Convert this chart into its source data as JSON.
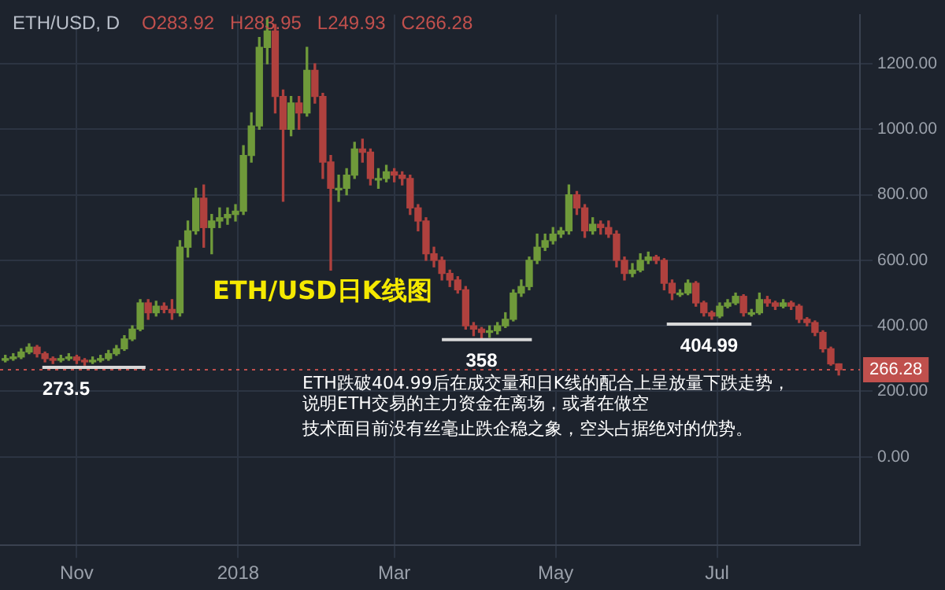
{
  "chart_data": {
    "type": "candlestick",
    "title": "ETH/USD日K线图",
    "subtitle": "ETH/USD, D",
    "annotations": [
      "O283.92",
      "H283.95",
      "L249.93",
      "C266.28",
      "ETH跌破404.99后在成交量和日K线的配合上呈放量下跌走势，",
      "说明ETH交易的主力资金在离场，或者在做空",
      "技术面目前没有丝毫止跌企稳之象，空头占据绝对的优势。",
      {
        "text": "273.5",
        "x": "2017-10-28",
        "y": 273.5
      },
      {
        "text": "358",
        "x": "2018-04-03",
        "y": 358
      },
      {
        "text": "404.99",
        "x": "2018-06-28",
        "y": 404.99
      }
    ],
    "x": [
      "2017-10-05",
      "2017-10-08",
      "2017-10-11",
      "2017-10-14",
      "2017-10-17",
      "2017-10-20",
      "2017-10-23",
      "2017-10-26",
      "2017-10-29",
      "2017-11-01",
      "2017-11-04",
      "2017-11-07",
      "2017-11-10",
      "2017-11-13",
      "2017-11-16",
      "2017-11-19",
      "2017-11-22",
      "2017-11-25",
      "2017-11-28",
      "2017-12-01",
      "2017-12-04",
      "2017-12-07",
      "2017-12-10",
      "2017-12-13",
      "2017-12-16",
      "2017-12-19",
      "2017-12-22",
      "2017-12-25",
      "2017-12-28",
      "2017-12-31",
      "2018-01-03",
      "2018-01-06",
      "2018-01-09",
      "2018-01-12",
      "2018-01-15",
      "2018-01-18",
      "2018-01-21",
      "2018-01-24",
      "2018-01-27",
      "2018-01-30",
      "2018-02-02",
      "2018-02-05",
      "2018-02-08",
      "2018-02-11",
      "2018-02-14",
      "2018-02-17",
      "2018-02-20",
      "2018-02-23",
      "2018-02-26",
      "2018-03-01",
      "2018-03-04",
      "2018-03-07",
      "2018-03-10",
      "2018-03-13",
      "2018-03-16",
      "2018-03-19",
      "2018-03-22",
      "2018-03-25",
      "2018-03-28",
      "2018-03-31",
      "2018-04-03",
      "2018-04-06",
      "2018-04-09",
      "2018-04-12",
      "2018-04-15",
      "2018-04-18",
      "2018-04-21",
      "2018-04-24",
      "2018-04-27",
      "2018-04-30",
      "2018-05-03",
      "2018-05-06",
      "2018-05-09",
      "2018-05-12",
      "2018-05-15",
      "2018-05-18",
      "2018-05-21",
      "2018-05-24",
      "2018-05-27",
      "2018-05-30",
      "2018-06-02",
      "2018-06-05",
      "2018-06-08",
      "2018-06-11",
      "2018-06-14",
      "2018-06-17",
      "2018-06-20",
      "2018-06-23",
      "2018-06-26",
      "2018-06-29",
      "2018-07-02",
      "2018-07-05",
      "2018-07-08",
      "2018-07-11",
      "2018-07-14",
      "2018-07-17",
      "2018-07-20",
      "2018-07-23",
      "2018-07-26",
      "2018-07-29",
      "2018-08-01",
      "2018-08-04",
      "2018-08-07",
      "2018-08-10",
      "2018-08-13",
      "2018-08-16"
    ],
    "ohlc": [
      [
        295,
        310,
        290,
        300
      ],
      [
        300,
        315,
        295,
        305
      ],
      [
        305,
        330,
        300,
        320
      ],
      [
        320,
        345,
        315,
        335
      ],
      [
        335,
        340,
        305,
        315
      ],
      [
        315,
        320,
        290,
        300
      ],
      [
        300,
        305,
        285,
        295
      ],
      [
        295,
        310,
        290,
        300
      ],
      [
        300,
        315,
        295,
        305
      ],
      [
        305,
        310,
        285,
        295
      ],
      [
        295,
        300,
        280,
        290
      ],
      [
        290,
        305,
        285,
        295
      ],
      [
        295,
        310,
        290,
        300
      ],
      [
        300,
        325,
        295,
        315
      ],
      [
        315,
        340,
        310,
        330
      ],
      [
        330,
        370,
        325,
        360
      ],
      [
        360,
        400,
        355,
        390
      ],
      [
        390,
        480,
        385,
        470
      ],
      [
        470,
        480,
        420,
        440
      ],
      [
        440,
        475,
        430,
        460
      ],
      [
        460,
        470,
        440,
        450
      ],
      [
        450,
        480,
        420,
        440
      ],
      [
        440,
        660,
        430,
        640
      ],
      [
        640,
        720,
        610,
        690
      ],
      [
        690,
        820,
        680,
        790
      ],
      [
        790,
        830,
        640,
        700
      ],
      [
        700,
        740,
        620,
        720
      ],
      [
        720,
        760,
        700,
        730
      ],
      [
        730,
        760,
        710,
        740
      ],
      [
        740,
        770,
        720,
        750
      ],
      [
        750,
        950,
        740,
        920
      ],
      [
        920,
        1050,
        900,
        1010
      ],
      [
        1010,
        1280,
        1000,
        1250
      ],
      [
        1250,
        1340,
        1200,
        1300
      ],
      [
        1300,
        1320,
        1050,
        1100
      ],
      [
        1100,
        1120,
        780,
        1000
      ],
      [
        1000,
        1100,
        980,
        1080
      ],
      [
        1080,
        1100,
        1000,
        1050
      ],
      [
        1050,
        1250,
        1040,
        1180
      ],
      [
        1180,
        1200,
        1080,
        1100
      ],
      [
        1100,
        1110,
        850,
        900
      ],
      [
        900,
        920,
        570,
        820
      ],
      [
        820,
        860,
        780,
        820
      ],
      [
        820,
        880,
        800,
        860
      ],
      [
        860,
        960,
        850,
        940
      ],
      [
        940,
        970,
        900,
        930
      ],
      [
        930,
        940,
        830,
        850
      ],
      [
        850,
        880,
        820,
        850
      ],
      [
        850,
        890,
        840,
        870
      ],
      [
        870,
        880,
        840,
        860
      ],
      [
        860,
        870,
        830,
        850
      ],
      [
        850,
        860,
        740,
        760
      ],
      [
        760,
        770,
        690,
        720
      ],
      [
        720,
        730,
        600,
        620
      ],
      [
        620,
        640,
        580,
        600
      ],
      [
        600,
        610,
        540,
        560
      ],
      [
        560,
        570,
        520,
        540
      ],
      [
        540,
        550,
        500,
        510
      ],
      [
        510,
        520,
        390,
        400
      ],
      [
        400,
        410,
        370,
        390
      ],
      [
        390,
        395,
        360,
        380
      ],
      [
        380,
        400,
        365,
        385
      ],
      [
        385,
        410,
        375,
        400
      ],
      [
        400,
        440,
        395,
        420
      ],
      [
        420,
        510,
        415,
        500
      ],
      [
        500,
        540,
        490,
        520
      ],
      [
        520,
        610,
        510,
        600
      ],
      [
        600,
        680,
        590,
        640
      ],
      [
        640,
        680,
        630,
        660
      ],
      [
        660,
        700,
        650,
        680
      ],
      [
        680,
        700,
        670,
        690
      ],
      [
        690,
        830,
        680,
        800
      ],
      [
        800,
        810,
        740,
        760
      ],
      [
        760,
        770,
        670,
        690
      ],
      [
        690,
        730,
        680,
        710
      ],
      [
        710,
        720,
        680,
        700
      ],
      [
        700,
        720,
        670,
        680
      ],
      [
        680,
        690,
        580,
        600
      ],
      [
        600,
        610,
        540,
        560
      ],
      [
        560,
        590,
        550,
        570
      ],
      [
        570,
        620,
        565,
        600
      ],
      [
        600,
        625,
        590,
        610
      ],
      [
        610,
        615,
        590,
        600
      ],
      [
        600,
        605,
        510,
        530
      ],
      [
        530,
        540,
        480,
        500
      ],
      [
        500,
        510,
        490,
        500
      ],
      [
        500,
        540,
        495,
        530
      ],
      [
        530,
        535,
        460,
        470
      ],
      [
        470,
        475,
        430,
        440
      ],
      [
        440,
        445,
        420,
        430
      ],
      [
        430,
        470,
        425,
        460
      ],
      [
        460,
        480,
        455,
        470
      ],
      [
        470,
        500,
        465,
        490
      ],
      [
        490,
        495,
        430,
        440
      ],
      [
        440,
        450,
        430,
        440
      ],
      [
        440,
        500,
        435,
        480
      ],
      [
        480,
        490,
        460,
        470
      ],
      [
        470,
        475,
        450,
        460
      ],
      [
        460,
        480,
        455,
        470
      ],
      [
        470,
        475,
        450,
        460
      ],
      [
        460,
        465,
        410,
        420
      ],
      [
        420,
        425,
        400,
        410
      ],
      [
        410,
        415,
        370,
        380
      ],
      [
        380,
        385,
        320,
        330
      ],
      [
        330,
        335,
        280,
        283.92
      ],
      [
        283.92,
        283.95,
        249.93,
        266.28
      ]
    ],
    "colors": [
      "#6f9a3a",
      "#6f9a3a",
      "#6f9a3a",
      "#6f9a3a",
      "#b0413e",
      "#b0413e",
      "#b0413e",
      "#6f9a3a",
      "#6f9a3a",
      "#b0413e",
      "#b0413e",
      "#6f9a3a",
      "#6f9a3a",
      "#6f9a3a",
      "#6f9a3a",
      "#6f9a3a",
      "#6f9a3a",
      "#6f9a3a",
      "#b0413e",
      "#6f9a3a",
      "#b0413e",
      "#b0413e",
      "#6f9a3a",
      "#6f9a3a",
      "#6f9a3a",
      "#b0413e",
      "#6f9a3a",
      "#6f9a3a",
      "#6f9a3a",
      "#6f9a3a",
      "#6f9a3a",
      "#6f9a3a",
      "#6f9a3a",
      "#6f9a3a",
      "#b0413e",
      "#b0413e",
      "#6f9a3a",
      "#b0413e",
      "#6f9a3a",
      "#b0413e",
      "#b0413e",
      "#b0413e",
      "#6f9a3a",
      "#6f9a3a",
      "#6f9a3a",
      "#b0413e",
      "#b0413e",
      "#6f9a3a",
      "#6f9a3a",
      "#b0413e",
      "#b0413e",
      "#b0413e",
      "#b0413e",
      "#b0413e",
      "#b0413e",
      "#b0413e",
      "#b0413e",
      "#b0413e",
      "#b0413e",
      "#b0413e",
      "#b0413e",
      "#6f9a3a",
      "#6f9a3a",
      "#6f9a3a",
      "#6f9a3a",
      "#6f9a3a",
      "#6f9a3a",
      "#6f9a3a",
      "#6f9a3a",
      "#6f9a3a",
      "#6f9a3a",
      "#6f9a3a",
      "#b0413e",
      "#b0413e",
      "#6f9a3a",
      "#b0413e",
      "#b0413e",
      "#b0413e",
      "#b0413e",
      "#6f9a3a",
      "#6f9a3a",
      "#6f9a3a",
      "#b0413e",
      "#b0413e",
      "#b0413e",
      "#6f9a3a",
      "#6f9a3a",
      "#b0413e",
      "#b0413e",
      "#b0413e",
      "#6f9a3a",
      "#6f9a3a",
      "#6f9a3a",
      "#b0413e",
      "#6f9a3a",
      "#6f9a3a",
      "#b0413e",
      "#b0413e",
      "#6f9a3a",
      "#b0413e",
      "#b0413e",
      "#b0413e",
      "#b0413e",
      "#b0413e",
      "#b0413e",
      "#b0413e"
    ],
    "xlim": [
      "2017-10-03",
      "2018-08-24"
    ],
    "xticks": [
      {
        "value": "2017-11-01",
        "label": "Nov"
      },
      {
        "value": "2018-01-01",
        "label": "2018"
      },
      {
        "value": "2018-03-01",
        "label": "Mar"
      },
      {
        "value": "2018-05-01",
        "label": "May"
      },
      {
        "value": "2018-07-01",
        "label": "Jul"
      }
    ],
    "ylim": [
      -270,
      1350
    ],
    "yticks": [
      {
        "value": 0,
        "label": "0.00"
      },
      {
        "value": 200,
        "label": "200.00"
      },
      {
        "value": 400,
        "label": "400.00"
      },
      {
        "value": 600,
        "label": "600.00"
      },
      {
        "value": 800,
        "label": "800.00"
      },
      {
        "value": 1000,
        "label": "1000.00"
      },
      {
        "value": 1200,
        "label": "1200.00"
      }
    ],
    "ref_lines": [
      {
        "axis": "y",
        "value": 266.28,
        "label": "266.28",
        "color": "#c0504d",
        "line_style": "dotted"
      }
    ],
    "series": [
      {
        "type": "line",
        "x": [
          "2017-10-19",
          "2017-11-27"
        ],
        "values": [
          273.5,
          273.5
        ],
        "color": "#d8d8d8"
      },
      {
        "type": "line",
        "x": [
          "2018-03-19",
          "2018-04-22"
        ],
        "values": [
          358,
          358
        ],
        "color": "#d8d8d8"
      },
      {
        "type": "line",
        "x": [
          "2018-06-12",
          "2018-07-14"
        ],
        "values": [
          404.99,
          404.99
        ],
        "color": "#d8d8d8"
      }
    ],
    "grid": true,
    "legend": false
  }
}
